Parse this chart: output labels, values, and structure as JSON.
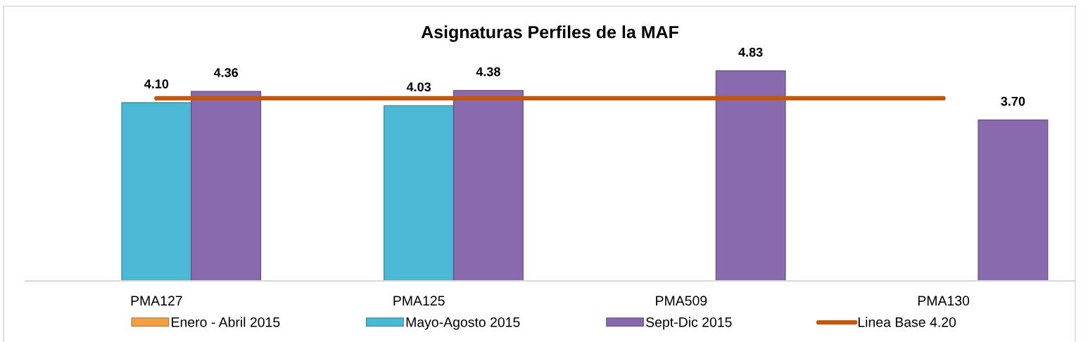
{
  "chart_data": {
    "type": "bar",
    "title": "Asignaturas Perfiles de la MAF",
    "categories": [
      "PMA127",
      "PMA125",
      "PMA509",
      "PMA130"
    ],
    "series": [
      {
        "name": "Enero - Abril 2015",
        "color": "#f2a043",
        "values": [
          null,
          null,
          null,
          null
        ]
      },
      {
        "name": "Mayo-Agosto 2015",
        "color": "#4bb8d6",
        "values": [
          4.1,
          4.03,
          null,
          null
        ],
        "value_labels": [
          "4.10",
          "4.03",
          null,
          null
        ]
      },
      {
        "name": "Sept-Dic 2015",
        "color": "#8a6aae",
        "values": [
          4.36,
          4.38,
          4.83,
          3.7
        ],
        "value_labels": [
          "4.36",
          "4.38",
          "4.83",
          "3.70"
        ]
      },
      {
        "name": "Linea Base 4.20",
        "type": "line",
        "color": "#c0580f",
        "values": [
          4.2,
          4.2,
          4.2,
          4.2
        ]
      }
    ],
    "tick_labels": "x",
    "legend": "bottom",
    "grid": false
  }
}
